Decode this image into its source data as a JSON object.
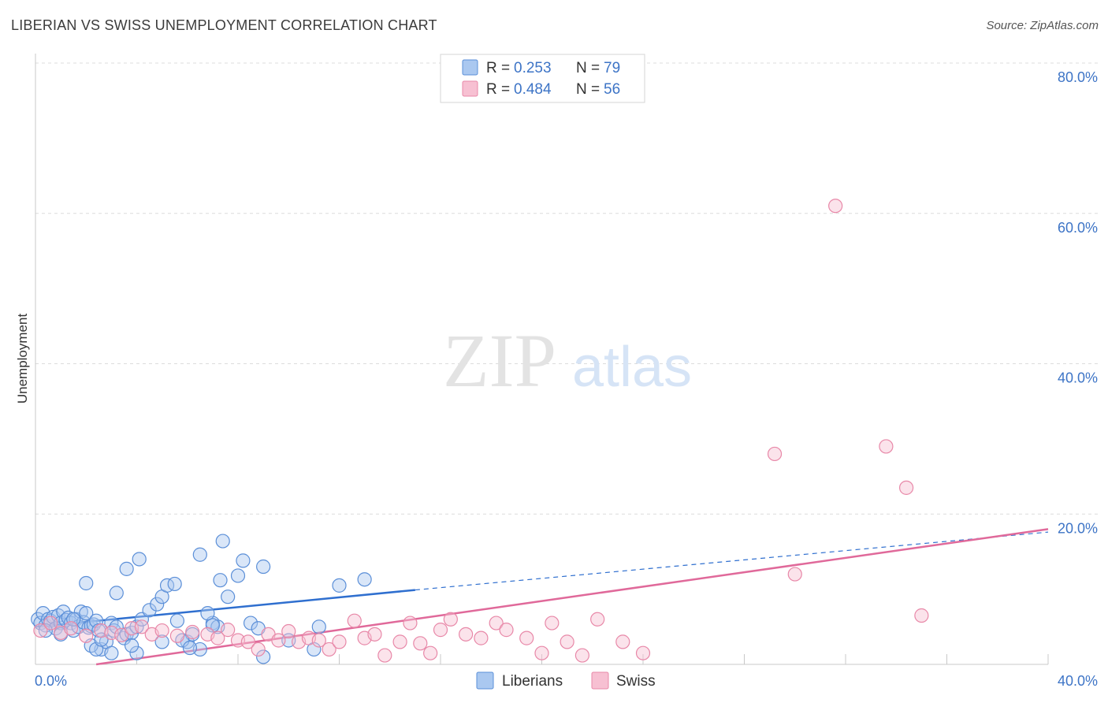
{
  "header": {
    "title": "LIBERIAN VS SWISS UNEMPLOYMENT CORRELATION CHART",
    "source": "Source: ZipAtlas.com"
  },
  "watermark": {
    "zip": "ZIP",
    "atlas": "atlas"
  },
  "legend": {
    "rows": [
      {
        "r_label": "R = ",
        "r_value": "0.253",
        "n_label": "N = ",
        "n_value": "79"
      },
      {
        "r_label": "R = ",
        "r_value": "0.484",
        "n_label": "N = ",
        "n_value": "56"
      }
    ],
    "bottom": [
      "Liberians",
      "Swiss"
    ]
  },
  "colors": {
    "liberians_fill": "#aac8f0",
    "liberians_stroke": "#5b8fd8",
    "liberians_line": "#2f6fcf",
    "swiss_fill": "#f7c0d2",
    "swiss_stroke": "#e888a8",
    "swiss_line": "#e0699a",
    "tick_label": "#3d74c6",
    "grid": "#dcdcdc"
  },
  "chart_data": {
    "type": "scatter",
    "title": "LIBERIAN VS SWISS UNEMPLOYMENT CORRELATION CHART",
    "xlabel": "",
    "ylabel": "Unemployment",
    "xlim": [
      0,
      40
    ],
    "ylim": [
      0,
      80
    ],
    "x_tick_labels": [
      "0.0%",
      "40.0%"
    ],
    "y_tick_labels": [
      "20.0%",
      "40.0%",
      "60.0%",
      "80.0%"
    ],
    "y_tick_values": [
      20,
      40,
      60,
      80
    ],
    "series": [
      {
        "name": "Liberians",
        "r": 0.253,
        "n": 79,
        "trend": {
          "x0": 0,
          "y0": 5.0,
          "x1": 15,
          "y1": 9.9,
          "dash_to_x": 40,
          "dash_to_y": 17.6
        },
        "points": [
          [
            0.1,
            6.0
          ],
          [
            0.2,
            5.5
          ],
          [
            0.3,
            6.8
          ],
          [
            0.4,
            5.2
          ],
          [
            0.5,
            6.0
          ],
          [
            0.6,
            5.8
          ],
          [
            0.7,
            6.3
          ],
          [
            0.8,
            4.8
          ],
          [
            0.9,
            6.5
          ],
          [
            1.0,
            5.5
          ],
          [
            1.1,
            7.0
          ],
          [
            1.2,
            5.9
          ],
          [
            1.3,
            6.2
          ],
          [
            1.4,
            5.5
          ],
          [
            1.5,
            4.5
          ],
          [
            1.6,
            6.0
          ],
          [
            1.7,
            5.0
          ],
          [
            1.8,
            7.0
          ],
          [
            1.9,
            5.6
          ],
          [
            2.0,
            6.8
          ],
          [
            2.1,
            4.9
          ],
          [
            2.2,
            5.1
          ],
          [
            2.3,
            5.3
          ],
          [
            2.4,
            5.8
          ],
          [
            2.5,
            4.5
          ],
          [
            2.6,
            2.0
          ],
          [
            2.8,
            3.0
          ],
          [
            3.0,
            5.5
          ],
          [
            3.1,
            4.5
          ],
          [
            3.2,
            5.0
          ],
          [
            3.5,
            3.5
          ],
          [
            3.6,
            4.0
          ],
          [
            3.8,
            4.2
          ],
          [
            4.0,
            5.0
          ],
          [
            4.2,
            6.0
          ],
          [
            4.5,
            7.2
          ],
          [
            4.8,
            8.0
          ],
          [
            5.0,
            9.0
          ],
          [
            5.2,
            10.5
          ],
          [
            5.5,
            10.7
          ],
          [
            2.0,
            10.8
          ],
          [
            2.2,
            2.5
          ],
          [
            3.0,
            1.5
          ],
          [
            4.0,
            1.5
          ],
          [
            5.0,
            3.0
          ],
          [
            6.0,
            3.0
          ],
          [
            6.5,
            2.0
          ],
          [
            7.0,
            5.5
          ],
          [
            7.2,
            5.0
          ],
          [
            7.3,
            11.2
          ],
          [
            9.0,
            1.0
          ],
          [
            7.6,
            9.0
          ],
          [
            2.4,
            2.0
          ],
          [
            1.0,
            4.0
          ],
          [
            3.2,
            9.5
          ],
          [
            3.6,
            12.7
          ],
          [
            4.1,
            14.0
          ],
          [
            5.6,
            5.8
          ],
          [
            6.2,
            4.0
          ],
          [
            5.8,
            3.2
          ],
          [
            6.1,
            2.2
          ],
          [
            6.5,
            14.6
          ],
          [
            7.0,
            5.2
          ],
          [
            7.4,
            16.4
          ],
          [
            8.0,
            11.8
          ],
          [
            8.2,
            13.8
          ],
          [
            8.5,
            5.5
          ],
          [
            8.8,
            4.8
          ],
          [
            9.0,
            13.0
          ],
          [
            10.0,
            3.2
          ],
          [
            11.0,
            2.0
          ],
          [
            11.2,
            5.0
          ],
          [
            12.0,
            10.5
          ],
          [
            13.0,
            11.3
          ],
          [
            6.8,
            6.8
          ],
          [
            0.4,
            4.5
          ],
          [
            1.5,
            6.0
          ],
          [
            2.6,
            3.3
          ],
          [
            3.8,
            2.5
          ]
        ]
      },
      {
        "name": "Swiss",
        "r": 0.484,
        "n": 56,
        "trend": {
          "x0": 2.4,
          "y0": 0.0,
          "x1": 40,
          "y1": 18.0
        },
        "points": [
          [
            0.2,
            4.5
          ],
          [
            0.6,
            5.5
          ],
          [
            1.0,
            4.2
          ],
          [
            1.4,
            4.8
          ],
          [
            2.0,
            3.8
          ],
          [
            2.6,
            4.5
          ],
          [
            3.0,
            4.2
          ],
          [
            3.4,
            3.9
          ],
          [
            3.8,
            4.8
          ],
          [
            4.2,
            5.0
          ],
          [
            4.6,
            4.0
          ],
          [
            5.0,
            4.5
          ],
          [
            5.6,
            3.8
          ],
          [
            6.2,
            4.3
          ],
          [
            6.8,
            4.0
          ],
          [
            7.2,
            3.5
          ],
          [
            7.6,
            4.6
          ],
          [
            8.0,
            3.2
          ],
          [
            8.4,
            3.0
          ],
          [
            8.8,
            2.0
          ],
          [
            9.2,
            4.0
          ],
          [
            9.6,
            3.2
          ],
          [
            10.0,
            4.4
          ],
          [
            10.4,
            3.0
          ],
          [
            10.8,
            3.5
          ],
          [
            11.2,
            3.2
          ],
          [
            11.6,
            2.0
          ],
          [
            12.0,
            3.0
          ],
          [
            12.6,
            5.8
          ],
          [
            13.0,
            3.5
          ],
          [
            13.4,
            4.0
          ],
          [
            13.8,
            1.2
          ],
          [
            14.4,
            3.0
          ],
          [
            14.8,
            5.5
          ],
          [
            15.2,
            2.8
          ],
          [
            15.6,
            1.5
          ],
          [
            16.0,
            4.6
          ],
          [
            16.4,
            6.0
          ],
          [
            17.0,
            4.0
          ],
          [
            17.6,
            3.5
          ],
          [
            18.2,
            5.5
          ],
          [
            18.6,
            4.6
          ],
          [
            19.4,
            3.5
          ],
          [
            20.0,
            1.5
          ],
          [
            20.4,
            5.5
          ],
          [
            21.0,
            3.0
          ],
          [
            21.6,
            1.2
          ],
          [
            22.2,
            6.0
          ],
          [
            23.2,
            3.0
          ],
          [
            24.0,
            1.5
          ],
          [
            30.0,
            12.0
          ],
          [
            35.0,
            6.5
          ],
          [
            29.2,
            28.0
          ],
          [
            33.6,
            29.0
          ],
          [
            34.4,
            23.5
          ],
          [
            31.6,
            61.0
          ]
        ]
      }
    ]
  }
}
